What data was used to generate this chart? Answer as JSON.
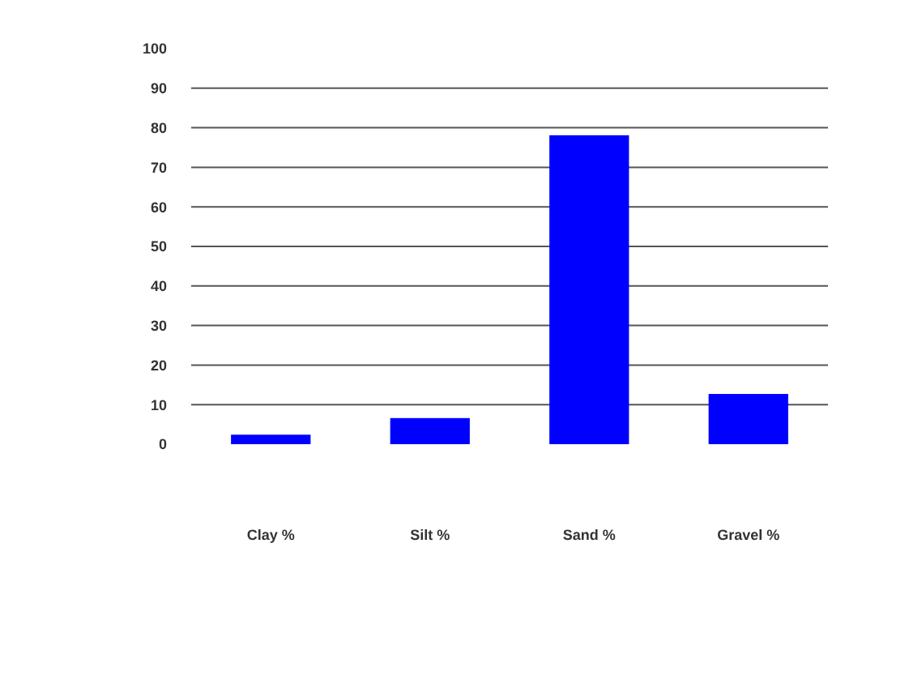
{
  "chart_data": {
    "type": "bar",
    "categories": [
      "Clay %",
      "Silt %",
      "Sand %",
      "Gravel %"
    ],
    "values": [
      2.4,
      6.6,
      78.1,
      12.7
    ],
    "color": "#0000ff",
    "ylim": [
      0,
      100
    ],
    "yticks": [
      0,
      10,
      20,
      30,
      40,
      50,
      60,
      70,
      80,
      90,
      100
    ],
    "grid": "y"
  }
}
